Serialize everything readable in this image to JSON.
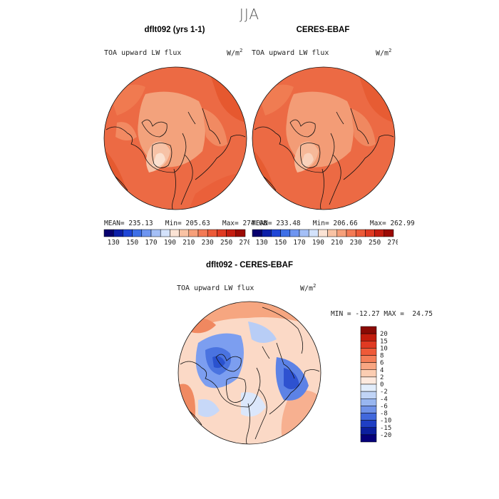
{
  "title": "JJA",
  "panels": [
    {
      "title": "dflt092 (yrs 1-1)",
      "variable": "TOA upward LW flux",
      "units": "W/m",
      "units_exp": "2",
      "stats": "MEAN= 235.13   Min= 205.63   Max= 274.08"
    },
    {
      "title": "CERES-EBAF",
      "variable": "TOA upward LW flux",
      "units": "W/m",
      "units_exp": "2",
      "stats": "MEAN= 233.48   Min= 206.66   Max= 262.99"
    },
    {
      "title": "dflt092 - CERES-EBAF",
      "variable": "TOA upward LW flux",
      "units": "W/m",
      "units_exp": "2",
      "stats": "MIN = -12.27 MAX =  24.75"
    }
  ],
  "horizontal_colorbar": {
    "tick_labels": [
      "130",
      "150",
      "170",
      "190",
      "210",
      "230",
      "250",
      "270"
    ],
    "colors": [
      "#08006e",
      "#0c1fa8",
      "#1f46d6",
      "#3d6fe6",
      "#6e95f0",
      "#a4bff6",
      "#d3e2fb",
      "#fbe3d4",
      "#f9c3a4",
      "#f6a07a",
      "#f37a55",
      "#ec5a38",
      "#e03a22",
      "#c41d10",
      "#9b0a04"
    ]
  },
  "vertical_colorbar": {
    "tick_labels": [
      "20",
      "15",
      "10",
      "8",
      "6",
      "4",
      "2",
      "0",
      "-2",
      "-4",
      "-6",
      "-8",
      "-10",
      "-15",
      "-20"
    ],
    "colors": [
      "#8a0a04",
      "#c21c0c",
      "#e03a22",
      "#ef5a38",
      "#f47e58",
      "#f8a682",
      "#fbcdb2",
      "#fde9de",
      "#e2edfb",
      "#c0d4f6",
      "#98b6f0",
      "#6f92e8",
      "#4168dc",
      "#1f3fc4",
      "#0c1f9e",
      "#06007a"
    ]
  },
  "legend_colors": {
    "land_outline": "#111111",
    "background": "#ffffff"
  }
}
